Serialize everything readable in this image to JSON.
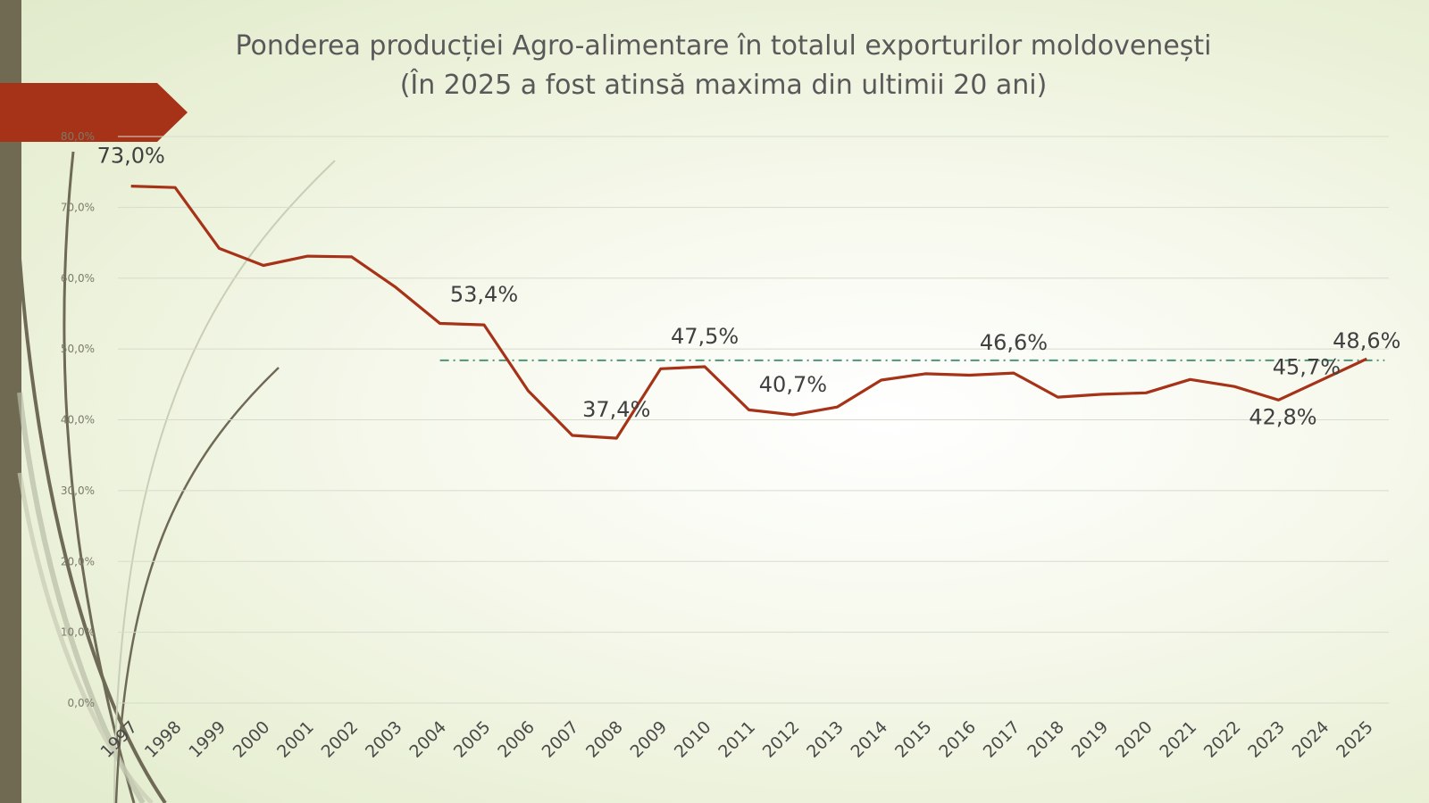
{
  "slide": {
    "title_line1": "Ponderea producției Agro-alimentare în totalul exporturilor moldovenești",
    "title_line2": "(În 2025 a fost atinsă maxima din ultimii 20 ani)"
  },
  "colors": {
    "line": "#a63218",
    "reference_line": "#4e9478",
    "accent": "#a63218",
    "sidebar": "#706a52",
    "text": "#404040"
  },
  "chart_data": {
    "type": "line",
    "x": [
      "1997",
      "1998",
      "1999",
      "2000",
      "2001",
      "2002",
      "2003",
      "2004",
      "2005",
      "2006",
      "2007",
      "2008",
      "2009",
      "2010",
      "2011",
      "2012",
      "2013",
      "2014",
      "2015",
      "2016",
      "2017",
      "2018",
      "2019",
      "2020",
      "2021",
      "2022",
      "2023",
      "2024",
      "2025"
    ],
    "series": [
      {
        "values": [
          73.0,
          72.8,
          64.2,
          61.8,
          63.1,
          63.0,
          58.7,
          53.6,
          53.4,
          44.1,
          37.8,
          37.4,
          47.2,
          47.5,
          41.4,
          40.7,
          41.8,
          45.6,
          46.5,
          46.3,
          46.6,
          43.2,
          43.6,
          43.8,
          45.7,
          44.7,
          42.8,
          45.7,
          48.6
        ]
      }
    ],
    "reference_line": {
      "value": 48.4,
      "x_from": "2004",
      "x_to": "2025",
      "style": "dash-dot"
    },
    "data_labels": [
      {
        "x": "1997",
        "text": "73,0%"
      },
      {
        "x": "2005",
        "text": "53,4%"
      },
      {
        "x": "2008",
        "text": "37,4%"
      },
      {
        "x": "2010",
        "text": "47,5%"
      },
      {
        "x": "2012",
        "text": "40,7%"
      },
      {
        "x": "2017",
        "text": "46,6%"
      },
      {
        "x": "2023",
        "text": "42,8%"
      },
      {
        "x": "2024",
        "text": "45,7%"
      },
      {
        "x": "2025",
        "text": "48,6%"
      }
    ],
    "y_ticks": [
      0,
      10,
      20,
      30,
      40,
      50,
      60,
      70,
      80
    ],
    "y_tick_labels": [
      "0,0%",
      "10,0%",
      "20,0%",
      "30,0%",
      "40,0%",
      "50,0%",
      "60,0%",
      "70,0%",
      "80,0%"
    ],
    "ylim": [
      0,
      80
    ],
    "grid": true,
    "legend": "none"
  }
}
